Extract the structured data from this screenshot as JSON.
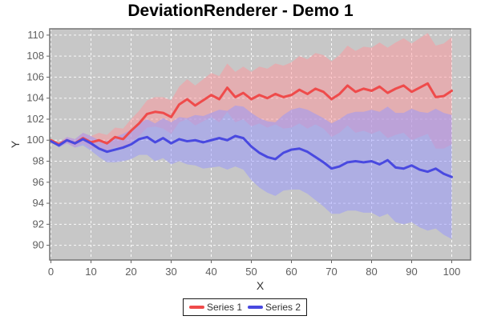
{
  "title": "DeviationRenderer - Demo 1",
  "colors": {
    "outer_background": "#FFFFFF",
    "plot_background": "#C7C7C7",
    "plot_border": "#757575",
    "gridline": "#FFFFFF",
    "tick_color": "#666666",
    "tick_label": "#5E5E5E",
    "axis_label": "#333333",
    "title_color": "#000000",
    "legend_border": "#1A1A1A",
    "legend_background": "#FFFFFF"
  },
  "legend": {
    "items": [
      {
        "label": "Series 1",
        "color": "#EF4B4B"
      },
      {
        "label": "Series 2",
        "color": "#4949E0"
      }
    ]
  },
  "chart_data": {
    "type": "line",
    "variant": "deviation-bands",
    "title": "DeviationRenderer - Demo 1",
    "xlabel": "X",
    "ylabel": "Y",
    "xlim": [
      -0.3,
      104.7
    ],
    "ylim": [
      88.6,
      110.6
    ],
    "x_ticks": [
      0,
      10,
      20,
      30,
      40,
      50,
      60,
      70,
      80,
      90,
      100
    ],
    "y_ticks": [
      90,
      92,
      94,
      96,
      98,
      100,
      102,
      104,
      106,
      108,
      110
    ],
    "grid": "on",
    "legend_position": "bottom",
    "x": [
      0,
      2,
      4,
      6,
      8,
      10,
      12,
      14,
      16,
      18,
      20,
      22,
      24,
      26,
      28,
      30,
      32,
      34,
      36,
      38,
      40,
      42,
      44,
      46,
      48,
      50,
      52,
      54,
      56,
      58,
      60,
      62,
      64,
      66,
      68,
      70,
      72,
      74,
      76,
      78,
      80,
      82,
      84,
      86,
      88,
      90,
      92,
      94,
      96,
      98,
      100
    ],
    "series": [
      {
        "name": "Series 1",
        "line_color": "#EF4B4B",
        "band_color": "rgba(255,150,155,0.5)",
        "y": [
          100.0,
          99.6,
          100.0,
          99.7,
          100.2,
          99.8,
          100.0,
          99.7,
          100.3,
          100.1,
          100.9,
          101.6,
          102.5,
          102.7,
          102.6,
          102.2,
          103.4,
          103.9,
          103.3,
          103.8,
          104.3,
          103.9,
          105.0,
          104.1,
          104.5,
          103.9,
          104.3,
          104.0,
          104.4,
          104.1,
          104.3,
          104.8,
          104.4,
          104.9,
          104.6,
          103.9,
          104.4,
          105.2,
          104.6,
          104.9,
          104.7,
          105.1,
          104.5,
          104.9,
          105.2,
          104.6,
          105.0,
          105.4,
          104.1,
          104.2,
          104.7
        ],
        "high": [
          100.0,
          99.8,
          100.3,
          100.1,
          100.7,
          100.4,
          100.7,
          100.5,
          101.2,
          101.1,
          102.0,
          102.8,
          103.8,
          104.1,
          104.1,
          103.8,
          105.1,
          105.8,
          105.2,
          105.8,
          106.4,
          106.1,
          107.3,
          106.5,
          107.0,
          106.5,
          107.0,
          106.8,
          107.3,
          107.1,
          107.4,
          108.0,
          107.7,
          108.3,
          108.1,
          107.5,
          108.1,
          109.0,
          108.5,
          108.9,
          108.8,
          109.3,
          108.8,
          109.3,
          109.7,
          109.2,
          109.7,
          110.2,
          109.0,
          109.2,
          109.8
        ],
        "low": [
          100.0,
          99.4,
          99.7,
          99.3,
          99.7,
          99.2,
          99.3,
          98.9,
          99.4,
          99.1,
          99.8,
          100.4,
          101.2,
          101.3,
          101.1,
          100.6,
          101.7,
          102.0,
          101.4,
          101.8,
          102.2,
          101.7,
          102.7,
          101.7,
          102.0,
          101.3,
          101.6,
          101.2,
          101.5,
          101.1,
          101.2,
          101.6,
          101.1,
          101.5,
          101.1,
          100.3,
          100.7,
          101.4,
          100.7,
          100.9,
          100.6,
          100.9,
          100.2,
          100.5,
          100.7,
          100.0,
          100.3,
          100.6,
          99.2,
          99.2,
          99.6
        ]
      },
      {
        "name": "Series 2",
        "line_color": "#4949E0",
        "band_color": "rgba(150,150,255,0.5)",
        "y": [
          99.9,
          99.5,
          100.0,
          99.7,
          100.1,
          99.7,
          99.2,
          98.9,
          99.1,
          99.3,
          99.6,
          100.1,
          100.3,
          99.8,
          100.2,
          99.7,
          100.1,
          99.9,
          100.0,
          99.8,
          100.0,
          100.2,
          100.0,
          100.4,
          100.2,
          99.4,
          98.8,
          98.4,
          98.2,
          98.8,
          99.1,
          99.2,
          98.9,
          98.4,
          97.9,
          97.3,
          97.5,
          97.9,
          98.0,
          97.9,
          98.0,
          97.7,
          98.1,
          97.4,
          97.3,
          97.6,
          97.2,
          97.0,
          97.3,
          96.8,
          96.5
        ],
        "high": [
          99.9,
          99.7,
          100.3,
          100.1,
          100.7,
          100.4,
          100.0,
          99.9,
          100.3,
          100.6,
          101.0,
          101.6,
          102.0,
          101.6,
          102.1,
          101.7,
          102.2,
          102.1,
          102.4,
          102.3,
          102.6,
          102.9,
          102.8,
          103.3,
          103.2,
          102.6,
          102.1,
          101.8,
          101.7,
          102.4,
          102.9,
          103.1,
          102.9,
          102.5,
          102.1,
          101.6,
          102.0,
          102.5,
          102.7,
          102.7,
          102.9,
          102.7,
          103.2,
          102.6,
          102.6,
          103.0,
          102.7,
          102.6,
          103.0,
          102.6,
          102.4
        ],
        "low": [
          99.9,
          99.3,
          99.7,
          99.3,
          99.5,
          99.0,
          98.4,
          97.9,
          97.9,
          98.0,
          98.2,
          98.6,
          98.6,
          98.0,
          98.3,
          97.7,
          98.0,
          97.7,
          97.6,
          97.3,
          97.4,
          97.5,
          97.2,
          97.5,
          97.2,
          96.2,
          95.5,
          95.0,
          94.7,
          95.2,
          95.3,
          95.3,
          94.9,
          94.3,
          93.7,
          93.0,
          93.0,
          93.3,
          93.3,
          93.1,
          93.1,
          92.7,
          93.0,
          92.2,
          92.0,
          92.2,
          91.7,
          91.4,
          91.6,
          91.0,
          90.6
        ]
      }
    ]
  }
}
